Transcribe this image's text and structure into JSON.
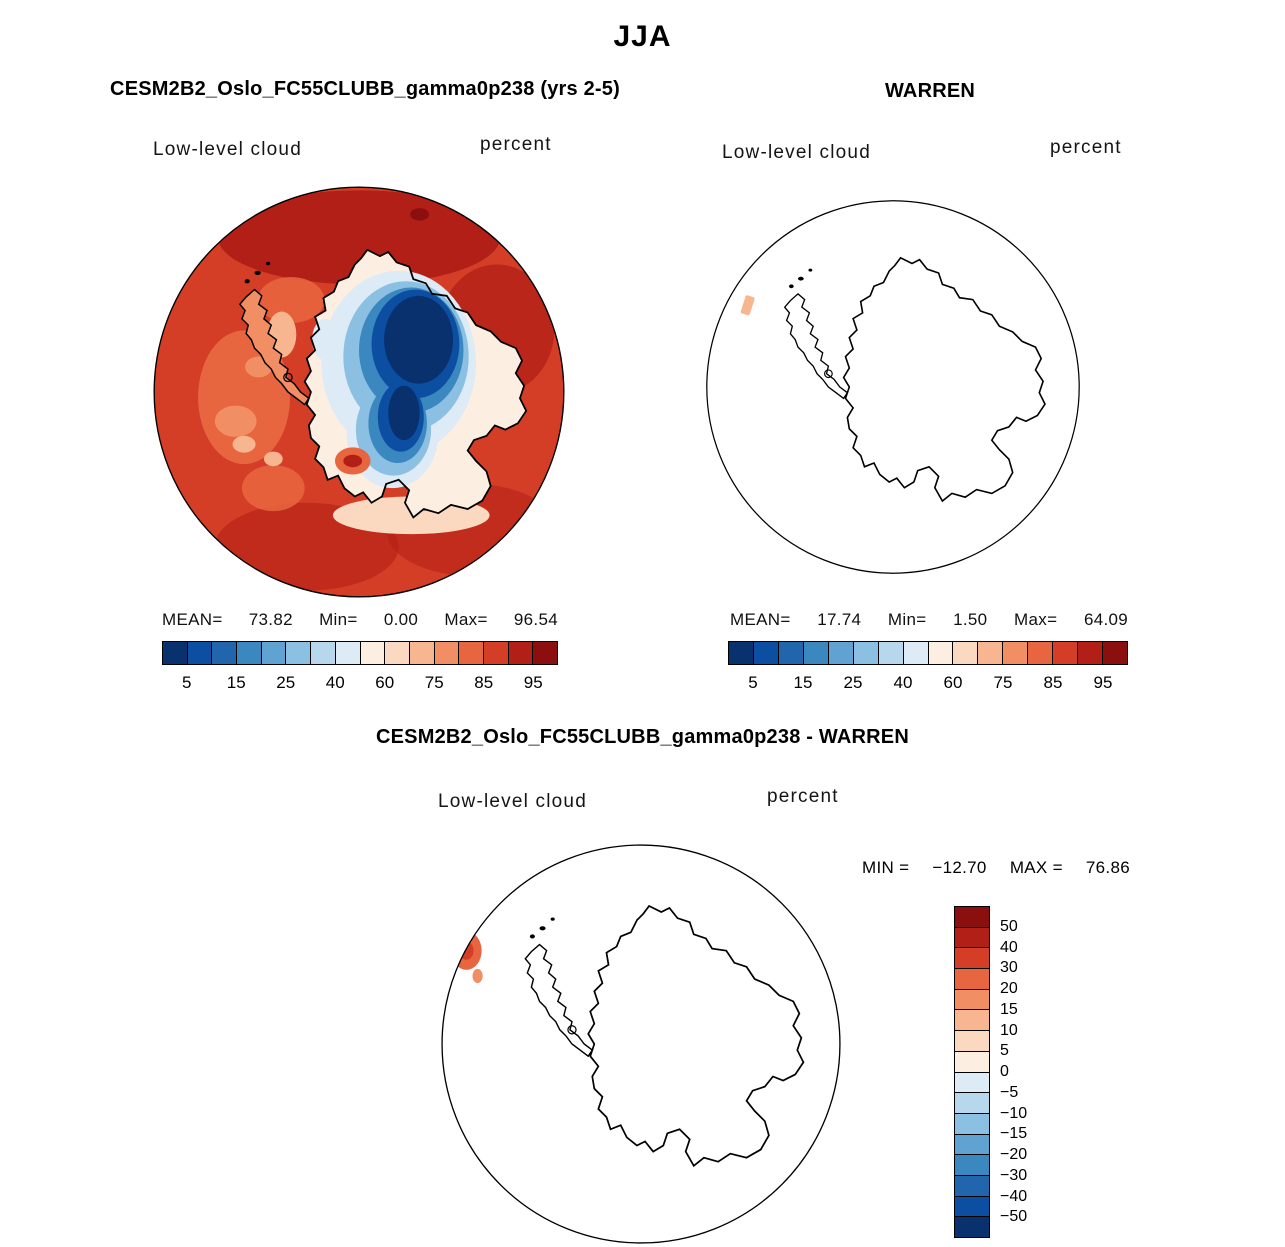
{
  "title": "JJA",
  "palette_pct": [
    "#08316d",
    "#0b4ea2",
    "#2166ac",
    "#3b87c0",
    "#60a3d2",
    "#8cc0e2",
    "#b6d7ec",
    "#dcebf5",
    "#fcefe2",
    "#fbd9c0",
    "#f8b690",
    "#f28e63",
    "#e7663f",
    "#d43d26",
    "#b21f16",
    "#8b0f0e"
  ],
  "panels": {
    "model": {
      "header": "CESM2B2_Oslo_FC55CLUBB_gamma0p238 (yrs 2-5)",
      "field_label": "Low-level cloud",
      "units": "percent",
      "stats": {
        "mean_label": "MEAN=",
        "mean": "73.82",
        "min_label": "Min=",
        "min": "0.00",
        "max_label": "Max=",
        "max": "96.54"
      },
      "colorbar_ticks": [
        "5",
        "15",
        "25",
        "40",
        "60",
        "75",
        "85",
        "95"
      ]
    },
    "obs": {
      "header": "WARREN",
      "field_label": "Low-level cloud",
      "units": "percent",
      "stats": {
        "mean_label": "MEAN=",
        "mean": "17.74",
        "min_label": "Min=",
        "min": "1.50",
        "max_label": "Max=",
        "max": "64.09"
      },
      "colorbar_ticks": [
        "5",
        "15",
        "25",
        "40",
        "60",
        "75",
        "85",
        "95"
      ]
    },
    "diff": {
      "header": "CESM2B2_Oslo_FC55CLUBB_gamma0p238 - WARREN",
      "field_label": "Low-level cloud",
      "units": "percent",
      "minmax": {
        "min_label": "MIN =",
        "min": "−12.70",
        "max_label": "MAX =",
        "max": "76.86"
      },
      "colorbar_labels": [
        "50",
        "40",
        "30",
        "20",
        "15",
        "10",
        "5",
        "0",
        "−5",
        "−10",
        "−15",
        "−20",
        "−30",
        "−40",
        "−50"
      ]
    }
  },
  "chart_data": [
    {
      "type": "heatmap",
      "panel": "top-left",
      "title": "CESM2B2_Oslo_FC55CLUBB_gamma0p238 (yrs 2-5)",
      "field": "Low-level cloud",
      "units": "percent",
      "season": "JJA",
      "projection": "south-polar-stereographic",
      "stats": {
        "mean": 73.82,
        "min": 0.0,
        "max": 96.54
      },
      "colorbar": {
        "orientation": "horizontal",
        "tick_labels": [
          5,
          15,
          25,
          40,
          60,
          75,
          85,
          95
        ],
        "n_segments": 16,
        "scheme": "blue-white-red"
      },
      "notes": "High low-cloud amounts (85-96%, dark red) over the Southern Ocean; minimum (<5%, dark blue) over the East Antarctic plateau with a pale transition ring over West Antarctica."
    },
    {
      "type": "heatmap",
      "panel": "top-right",
      "title": "WARREN",
      "field": "Low-level cloud",
      "units": "percent",
      "season": "JJA",
      "projection": "south-polar-stereographic",
      "stats": {
        "mean": 17.74,
        "min": 1.5,
        "max": 64.09
      },
      "colorbar": {
        "orientation": "horizontal",
        "tick_labels": [
          5,
          15,
          25,
          40,
          60,
          75,
          85,
          95
        ],
        "n_segments": 16,
        "scheme": "blue-white-red"
      },
      "notes": "Map appears nearly blank (white) with Antarctica coastline outline and a tiny pale-orange patch near the west edge."
    },
    {
      "type": "heatmap",
      "panel": "bottom",
      "title": "CESM2B2_Oslo_FC55CLUBB_gamma0p238 - WARREN",
      "field": "Low-level cloud",
      "units": "percent",
      "season": "JJA",
      "projection": "south-polar-stereographic",
      "stats": {
        "min": -12.7,
        "max": 76.86
      },
      "colorbar": {
        "orientation": "vertical",
        "tick_labels": [
          50,
          40,
          30,
          20,
          15,
          10,
          5,
          0,
          -5,
          -10,
          -15,
          -20,
          -30,
          -40,
          -50
        ],
        "n_segments": 16,
        "scheme": "red-top-to-blue-bottom"
      },
      "notes": "Difference map mostly unshaded (white); small orange positive patch at the left (west) edge of the domain."
    }
  ]
}
